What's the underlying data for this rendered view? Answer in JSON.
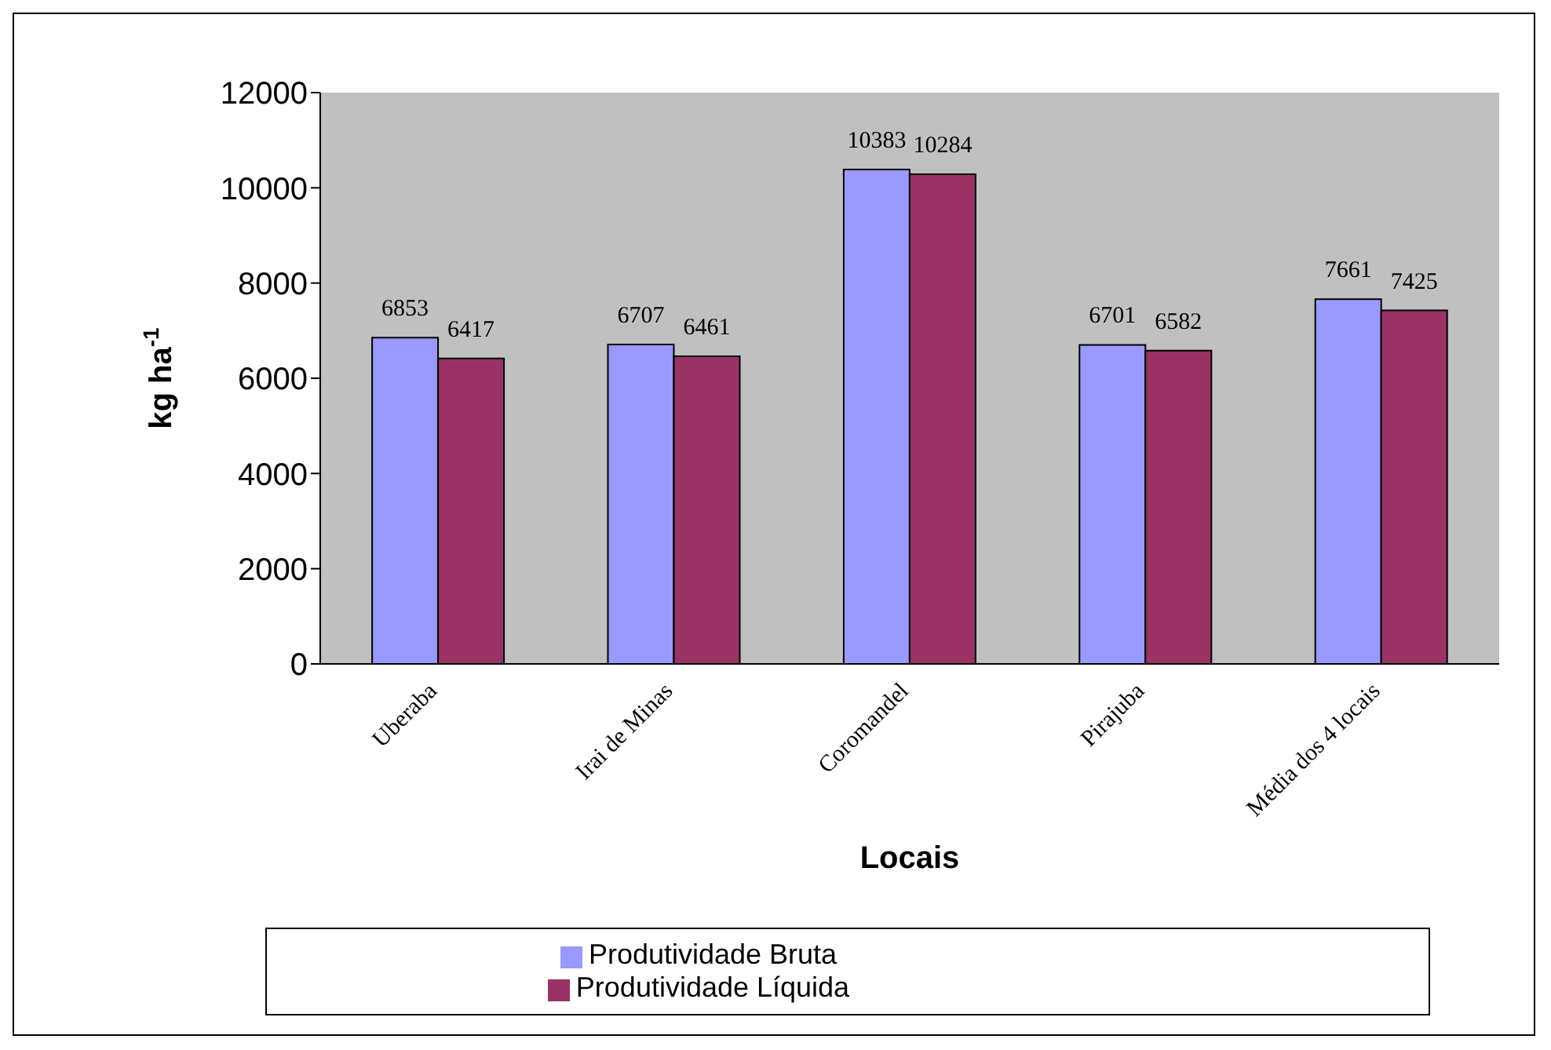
{
  "chart_data": {
    "type": "bar",
    "xlabel": "Locais",
    "ylabel": "kg ha$^{-1}$",
    "categories": [
      "Uberaba",
      "Irai de Minas",
      "Coromandel",
      "Pirajuba",
      "Média dos 4 locais"
    ],
    "series": [
      {
        "name": "Produtividade Bruta",
        "color": "#9999ff",
        "values": [
          6853,
          6707,
          10383,
          6701,
          7661
        ]
      },
      {
        "name": "Produtividade Líquida",
        "color": "#993366",
        "values": [
          6417,
          6461,
          10284,
          6582,
          7425
        ]
      }
    ],
    "ylim": [
      0,
      12000
    ],
    "yticks": [
      0,
      2000,
      4000,
      6000,
      8000,
      10000,
      12000
    ],
    "data_labels": true,
    "legend": "bottom"
  }
}
